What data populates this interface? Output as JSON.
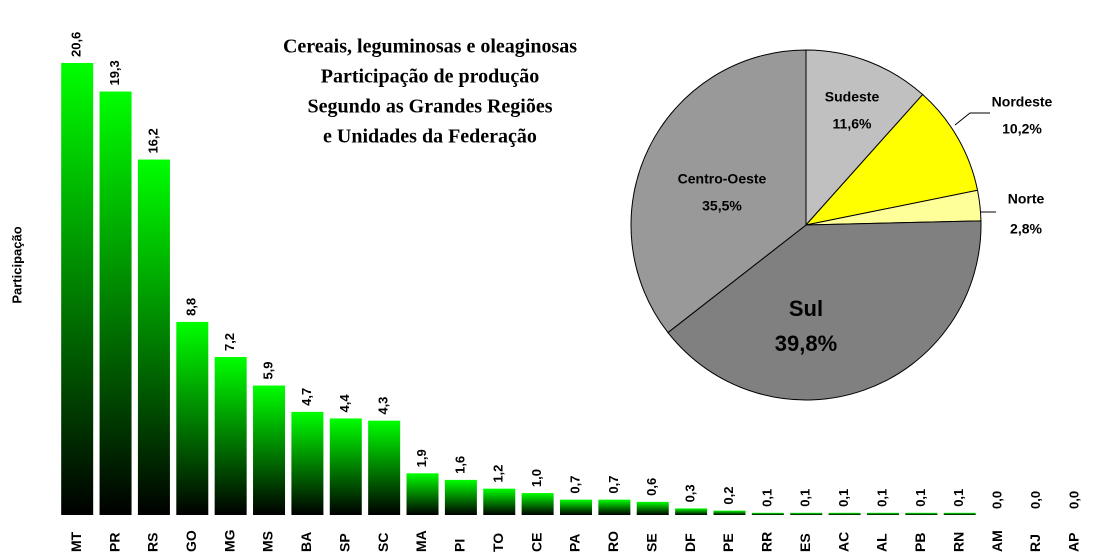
{
  "chart_data": [
    {
      "type": "bar",
      "title": [
        "Cereais, leguminosas e oleaginosas",
        "Participação de produção",
        "Segundo as Grandes Regiões",
        "e Unidades da Federação"
      ],
      "y_label": "Participação",
      "color": "#00ff00",
      "categories": [
        "MT",
        "PR",
        "RS",
        "GO",
        "MG",
        "MS",
        "BA",
        "SP",
        "SC",
        "MA",
        "PI",
        "TO",
        "CE",
        "PA",
        "RO",
        "SE",
        "DF",
        "PE",
        "RR",
        "ES",
        "AC",
        "AL",
        "PB",
        "RN",
        "AM",
        "RJ",
        "AP"
      ],
      "values": [
        20.6,
        19.3,
        16.2,
        8.8,
        7.2,
        5.9,
        4.7,
        4.4,
        4.3,
        1.9,
        1.6,
        1.2,
        1.0,
        0.7,
        0.7,
        0.6,
        0.3,
        0.2,
        0.1,
        0.1,
        0.1,
        0.1,
        0.1,
        0.1,
        0.0,
        0.0,
        0.0
      ],
      "value_labels": [
        "20,6",
        "19,3",
        "16,2",
        "8,8",
        "7,2",
        "5,9",
        "4,7",
        "4,4",
        "4,3",
        "1,9",
        "1,6",
        "1,2",
        "1,0",
        "0,7",
        "0,7",
        "0,6",
        "0,3",
        "0,2",
        "0,1",
        "0,1",
        "0,1",
        "0,1",
        "0,1",
        "0,1",
        "0,0",
        "0,0",
        "0,0"
      ]
    },
    {
      "type": "pie",
      "categories": [
        "Sudeste",
        "Nordeste",
        "Norte",
        "Sul",
        "Centro-Oeste"
      ],
      "values": [
        11.6,
        10.2,
        2.8,
        39.8,
        35.5
      ],
      "value_labels": [
        "11,6%",
        "10,2%",
        "2,8%",
        "39,8%",
        "35,5%"
      ],
      "colors": [
        "#c0c0c0",
        "#ffff00",
        "#ffff99",
        "#808080",
        "#999999"
      ]
    }
  ]
}
